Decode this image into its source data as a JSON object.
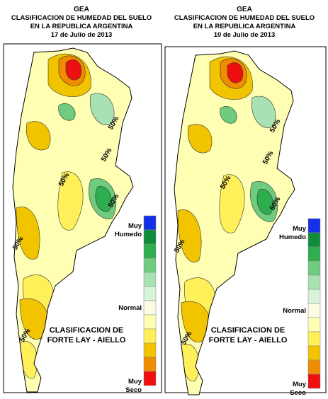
{
  "panels": [
    {
      "title_lines": [
        "GEA",
        "CLASIFICACION DE HUMEDAD DEL SUELO",
        "EN LA REPUBLICA ARGENTINA",
        "17 de Julio de 2013"
      ],
      "classification": [
        "CLASIFICACION DE",
        "FORTE LAY - AIELLO"
      ],
      "contour_labels": [
        "50%",
        "50%",
        "50%",
        "50%",
        "50%",
        "50%"
      ]
    },
    {
      "title_lines": [
        "GEA",
        "CLASIFICACION DE HUMEDAD DEL SUELO",
        "EN LA REPUBLICA ARGENTINA",
        "10 de Julio de 2013"
      ],
      "classification": [
        "CLASIFICACION DE",
        "FORTE LAY - AIELLO"
      ],
      "contour_labels": [
        "50%",
        "50%",
        "50%",
        "50%",
        "50%",
        "50%"
      ]
    }
  ],
  "legend": {
    "colors": [
      "#1430e6",
      "#0f8c3a",
      "#2fae4f",
      "#6fcb7d",
      "#a9e2b2",
      "#d9f2da",
      "#fbfbe4",
      "#ffffb4",
      "#fff05a",
      "#f2c400",
      "#f08c00",
      "#ee1010"
    ],
    "labels": [
      [
        "Muy",
        "Humedo"
      ],
      [
        "Normal"
      ],
      [
        "Muy",
        "Seco"
      ]
    ]
  }
}
